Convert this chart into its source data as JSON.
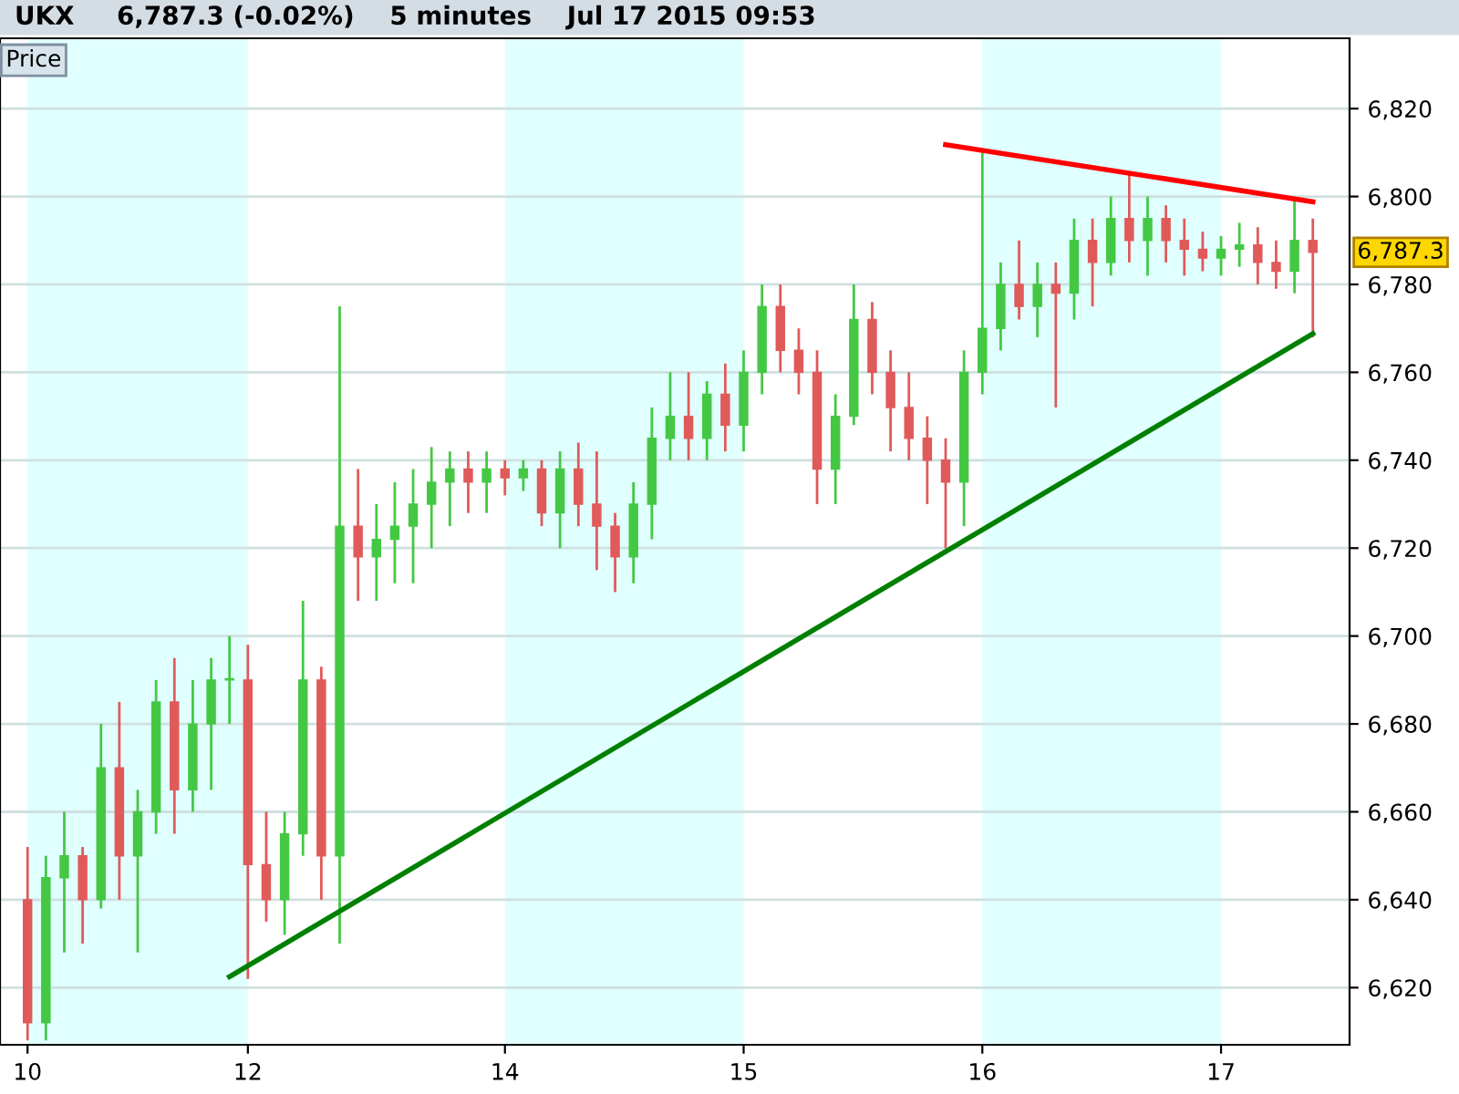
{
  "chart_data": {
    "type": "candlestick",
    "title": "UKX",
    "subtitle": "6,787.3 (-0.02%)    5 minutes    Jul 17 2015 09:53",
    "annotations": [
      "Price",
      "6,787.3"
    ],
    "categories": [
      "10",
      null,
      null,
      null,
      null,
      null,
      null,
      null,
      null,
      null,
      null,
      null,
      "12",
      null,
      null,
      null,
      null,
      null,
      null,
      null,
      null,
      null,
      null,
      null,
      null,
      null,
      "14",
      null,
      null,
      null,
      null,
      null,
      null,
      null,
      null,
      null,
      null,
      null,
      null,
      "15",
      null,
      null,
      null,
      null,
      null,
      null,
      null,
      null,
      null,
      null,
      null,
      null,
      "16",
      null,
      null,
      null,
      null,
      null,
      null,
      null,
      null,
      null,
      null,
      null,
      null,
      "17",
      null,
      null,
      null,
      null,
      null
    ],
    "ohlc": [
      [
        6640,
        6652,
        6608,
        6612
      ],
      [
        6612,
        6650,
        6608,
        6645
      ],
      [
        6645,
        6660,
        6628,
        6650
      ],
      [
        6650,
        6652,
        6630,
        6640
      ],
      [
        6640,
        6680,
        6638,
        6670
      ],
      [
        6670,
        6685,
        6640,
        6650
      ],
      [
        6650,
        6665,
        6628,
        6660
      ],
      [
        6660,
        6690,
        6655,
        6685
      ],
      [
        6685,
        6695,
        6655,
        6665
      ],
      [
        6665,
        6690,
        6660,
        6680
      ],
      [
        6680,
        6695,
        6665,
        6690
      ],
      [
        6690,
        6700,
        6680,
        6690
      ],
      [
        6690,
        6698,
        6622,
        6648
      ],
      [
        6648,
        6660,
        6635,
        6640
      ],
      [
        6640,
        6660,
        6632,
        6655
      ],
      [
        6655,
        6708,
        6650,
        6690
      ],
      [
        6690,
        6693,
        6640,
        6650
      ],
      [
        6650,
        6775,
        6630,
        6725
      ],
      [
        6725,
        6738,
        6708,
        6718
      ],
      [
        6718,
        6730,
        6708,
        6722
      ],
      [
        6722,
        6735,
        6712,
        6725
      ],
      [
        6725,
        6738,
        6712,
        6730
      ],
      [
        6730,
        6743,
        6720,
        6735
      ],
      [
        6735,
        6742,
        6725,
        6738
      ],
      [
        6738,
        6742,
        6728,
        6735
      ],
      [
        6735,
        6742,
        6728,
        6738
      ],
      [
        6738,
        6740,
        6732,
        6736
      ],
      [
        6736,
        6740,
        6733,
        6738
      ],
      [
        6738,
        6740,
        6725,
        6728
      ],
      [
        6728,
        6742,
        6720,
        6738
      ],
      [
        6738,
        6744,
        6725,
        6730
      ],
      [
        6730,
        6742,
        6715,
        6725
      ],
      [
        6725,
        6728,
        6710,
        6718
      ],
      [
        6718,
        6735,
        6712,
        6730
      ],
      [
        6730,
        6752,
        6722,
        6745
      ],
      [
        6745,
        6760,
        6740,
        6750
      ],
      [
        6750,
        6760,
        6740,
        6745
      ],
      [
        6745,
        6758,
        6740,
        6755
      ],
      [
        6755,
        6762,
        6742,
        6748
      ],
      [
        6748,
        6765,
        6742,
        6760
      ],
      [
        6760,
        6780,
        6755,
        6775
      ],
      [
        6775,
        6780,
        6760,
        6765
      ],
      [
        6765,
        6770,
        6755,
        6760
      ],
      [
        6760,
        6765,
        6730,
        6738
      ],
      [
        6738,
        6755,
        6730,
        6750
      ],
      [
        6750,
        6780,
        6748,
        6772
      ],
      [
        6772,
        6776,
        6755,
        6760
      ],
      [
        6760,
        6765,
        6742,
        6752
      ],
      [
        6752,
        6760,
        6740,
        6745
      ],
      [
        6745,
        6750,
        6730,
        6740
      ],
      [
        6740,
        6745,
        6720,
        6735
      ],
      [
        6735,
        6765,
        6725,
        6760
      ],
      [
        6760,
        6810,
        6755,
        6770
      ],
      [
        6770,
        6785,
        6765,
        6780
      ],
      [
        6780,
        6790,
        6772,
        6775
      ],
      [
        6775,
        6785,
        6768,
        6780
      ],
      [
        6780,
        6785,
        6752,
        6778
      ],
      [
        6778,
        6795,
        6772,
        6790
      ],
      [
        6790,
        6795,
        6775,
        6785
      ],
      [
        6785,
        6800,
        6782,
        6795
      ],
      [
        6795,
        6805,
        6785,
        6790
      ],
      [
        6790,
        6800,
        6782,
        6795
      ],
      [
        6795,
        6798,
        6785,
        6790
      ],
      [
        6790,
        6795,
        6782,
        6788
      ],
      [
        6788,
        6792,
        6783,
        6786
      ],
      [
        6786,
        6791,
        6782,
        6788
      ],
      [
        6788,
        6794,
        6784,
        6789
      ],
      [
        6789,
        6793,
        6780,
        6785
      ],
      [
        6785,
        6790,
        6779,
        6783
      ],
      [
        6783,
        6800,
        6778,
        6790
      ],
      [
        6790,
        6795,
        6768,
        6787.3
      ]
    ],
    "series": [
      {
        "type": "line",
        "color": "#008000",
        "values": [
          null,
          null,
          null,
          null,
          null,
          null,
          null,
          null,
          null,
          null,
          null,
          6622.5,
          null,
          null,
          null,
          null,
          null,
          null,
          null,
          null,
          null,
          null,
          null,
          null,
          null,
          null,
          null,
          null,
          null,
          null,
          null,
          null,
          null,
          null,
          null,
          null,
          null,
          null,
          null,
          null,
          null,
          null,
          null,
          null,
          null,
          null,
          null,
          null,
          null,
          null,
          null,
          null,
          null,
          null,
          null,
          null,
          null,
          null,
          null,
          null,
          null,
          null,
          null,
          null,
          null,
          null,
          null,
          null,
          null,
          null,
          6768.8
        ]
      },
      {
        "type": "line",
        "color": "#ff0000",
        "values": [
          null,
          null,
          null,
          null,
          null,
          null,
          null,
          null,
          null,
          null,
          null,
          null,
          null,
          null,
          null,
          null,
          null,
          null,
          null,
          null,
          null,
          null,
          null,
          null,
          null,
          null,
          null,
          null,
          null,
          null,
          null,
          null,
          null,
          null,
          null,
          null,
          null,
          null,
          null,
          null,
          null,
          null,
          null,
          null,
          null,
          null,
          null,
          null,
          null,
          null,
          6811.8,
          null,
          null,
          null,
          null,
          null,
          null,
          null,
          null,
          null,
          null,
          null,
          null,
          null,
          null,
          null,
          null,
          null,
          null,
          null,
          6798.8
        ]
      }
    ],
    "bands": [
      {
        "axis": "x",
        "from": "10",
        "to": "12",
        "color": "#e0ffff"
      },
      {
        "axis": "x",
        "from": "14",
        "to": "15",
        "color": "#e0ffff"
      },
      {
        "axis": "x",
        "from": "16",
        "to": "17",
        "color": "#e0ffff"
      }
    ],
    "ylim": [
      6607,
      6836
    ],
    "yticks": [
      {
        "value": 6620,
        "label": "6,620"
      },
      {
        "value": 6640,
        "label": "6,640"
      },
      {
        "value": 6660,
        "label": "6,660"
      },
      {
        "value": 6680,
        "label": "6,680"
      },
      {
        "value": 6700,
        "label": "6,700"
      },
      {
        "value": 6720,
        "label": "6,720"
      },
      {
        "value": 6740,
        "label": "6,740"
      },
      {
        "value": 6760,
        "label": "6,760"
      },
      {
        "value": 6780,
        "label": "6,780"
      },
      {
        "value": 6800,
        "label": "6,800"
      },
      {
        "value": 6820,
        "label": "6,820"
      }
    ],
    "grid": "y",
    "legend": false
  }
}
